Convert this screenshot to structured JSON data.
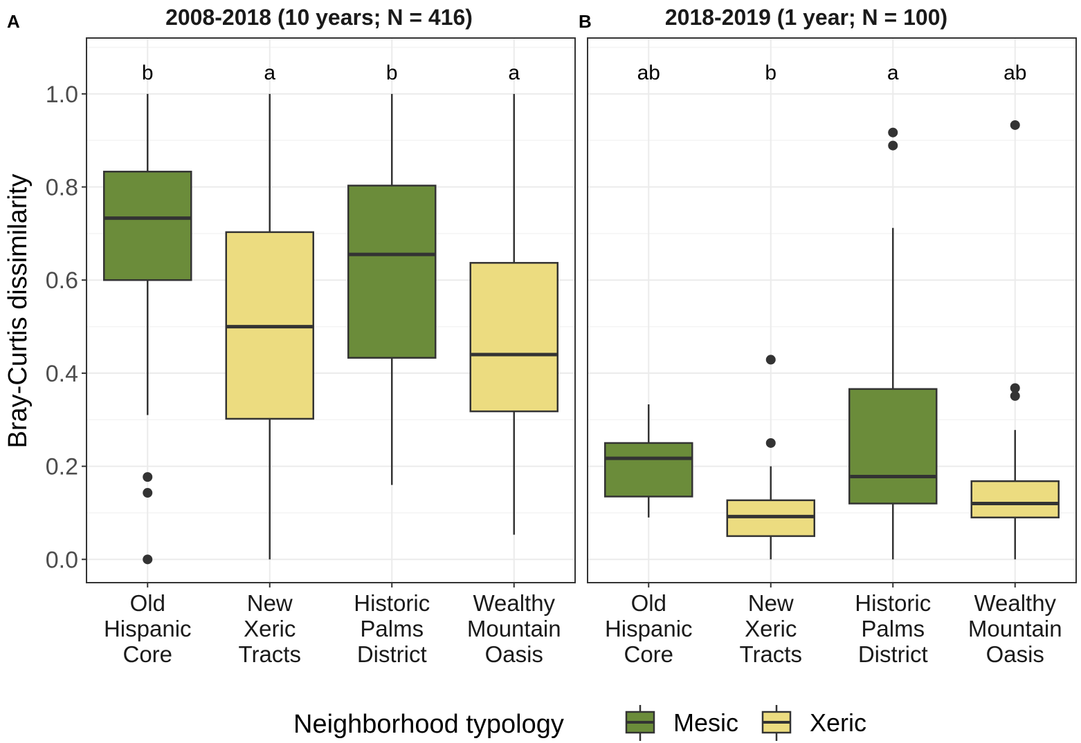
{
  "colors": {
    "mesic": "#6b8c3a",
    "xeric": "#ecdc80",
    "stroke": "#333333",
    "grid_major": "#ebebeb",
    "grid_minor": "#f4f4f4",
    "panel_border": "#333333"
  },
  "y_axis_label": "Bray-Curtis dissimilarity",
  "legend": {
    "title": "Neighborhood typology",
    "items": [
      {
        "label": "Mesic",
        "key": "mesic"
      },
      {
        "label": "Xeric",
        "key": "xeric"
      }
    ]
  },
  "chart_data": [
    {
      "type": "box",
      "panel": "A",
      "title": "2008-2018 (10 years; N = 416)",
      "ylim": [
        -0.05,
        1.12
      ],
      "yticks": [
        0.0,
        0.2,
        0.4,
        0.6,
        0.8,
        1.0
      ],
      "yticklabels": [
        "0.0",
        "0.2",
        "0.4",
        "0.6",
        "0.8",
        "1.0"
      ],
      "categories": [
        {
          "lines": [
            "Old",
            "Hispanic",
            "Core"
          ],
          "typology": "mesic",
          "sig": "b",
          "whisker_low": 0.31,
          "q1": 0.6,
          "median": 0.733,
          "q3": 0.833,
          "whisker_high": 1.0,
          "outliers": [
            0.177,
            0.143,
            0.0
          ]
        },
        {
          "lines": [
            "New",
            "Xeric",
            "Tracts"
          ],
          "typology": "xeric",
          "sig": "a",
          "whisker_low": 0.0,
          "q1": 0.302,
          "median": 0.5,
          "q3": 0.703,
          "whisker_high": 1.0,
          "outliers": []
        },
        {
          "lines": [
            "Historic",
            "Palms",
            "District"
          ],
          "typology": "mesic",
          "sig": "b",
          "whisker_low": 0.16,
          "q1": 0.433,
          "median": 0.655,
          "q3": 0.803,
          "whisker_high": 1.0,
          "outliers": []
        },
        {
          "lines": [
            "Wealthy",
            "Mountain",
            "Oasis"
          ],
          "typology": "xeric",
          "sig": "a",
          "whisker_low": 0.053,
          "q1": 0.318,
          "median": 0.44,
          "q3": 0.637,
          "whisker_high": 1.0,
          "outliers": []
        }
      ]
    },
    {
      "type": "box",
      "panel": "B",
      "title": "2018-2019 (1 year; N = 100)",
      "ylim": [
        -0.05,
        1.12
      ],
      "yticks": [
        0.0,
        0.2,
        0.4,
        0.6,
        0.8,
        1.0
      ],
      "yticklabels": [
        "0.0",
        "0.2",
        "0.4",
        "0.6",
        "0.8",
        "1.0"
      ],
      "categories": [
        {
          "lines": [
            "Old",
            "Hispanic",
            "Core"
          ],
          "typology": "mesic",
          "sig": "ab",
          "whisker_low": 0.09,
          "q1": 0.135,
          "median": 0.217,
          "q3": 0.25,
          "whisker_high": 0.333,
          "outliers": []
        },
        {
          "lines": [
            "New",
            "Xeric",
            "Tracts"
          ],
          "typology": "xeric",
          "sig": "b",
          "whisker_low": 0.0,
          "q1": 0.05,
          "median": 0.092,
          "q3": 0.127,
          "whisker_high": 0.2,
          "outliers": [
            0.429,
            0.25
          ]
        },
        {
          "lines": [
            "Historic",
            "Palms",
            "District"
          ],
          "typology": "mesic",
          "sig": "a",
          "whisker_low": 0.0,
          "q1": 0.12,
          "median": 0.178,
          "q3": 0.366,
          "whisker_high": 0.712,
          "outliers": [
            0.917,
            0.889
          ]
        },
        {
          "lines": [
            "Wealthy",
            "Mountain",
            "Oasis"
          ],
          "typology": "xeric",
          "sig": "ab",
          "whisker_low": 0.0,
          "q1": 0.09,
          "median": 0.12,
          "q3": 0.168,
          "whisker_high": 0.278,
          "outliers": [
            0.933,
            0.368,
            0.351
          ]
        }
      ]
    }
  ]
}
